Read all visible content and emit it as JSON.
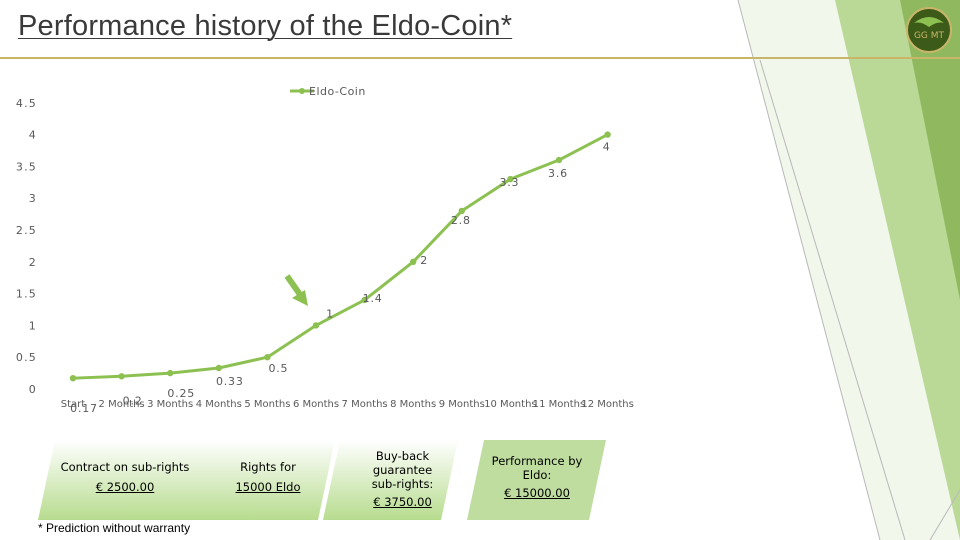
{
  "page": {
    "title": "Performance history of the Eldo-Coin*"
  },
  "colors": {
    "series": "#8cc152",
    "arrow": "#8cc152",
    "rule": "#c9b56a",
    "logo": "#5f8c2a"
  },
  "chart_data": {
    "type": "line",
    "title": "",
    "xlabel": "",
    "ylabel": "",
    "categories": [
      "Start",
      "2 Months",
      "3 Months",
      "4 Months",
      "5 Months",
      "6 Months",
      "7 Months",
      "8 Months",
      "9 Months",
      "10 Months",
      "11 Months",
      "12 Months"
    ],
    "series": [
      {
        "name": "Eldo-Coin",
        "values": [
          0.17,
          0.2,
          0.25,
          0.33,
          0.5,
          1,
          1.4,
          2,
          2.8,
          3.3,
          3.6,
          4
        ]
      }
    ],
    "y_ticks": [
      "0",
      "0.5",
      "1",
      "1.5",
      "2",
      "2.5",
      "3",
      "3.5",
      "4",
      "4.5"
    ],
    "ylim": [
      0,
      4.5
    ],
    "grid": false,
    "legend": "top"
  },
  "boxes": [
    {
      "line1": "Contract on sub-rights",
      "line2": "€ 2500.00"
    },
    {
      "line1": "Rights for",
      "line2": "15000 Eldo"
    },
    {
      "line1": "Buy-back guarantee sub-rights:",
      "line2": "€ 3750.00"
    },
    {
      "line1": "Performance by Eldo:",
      "line2": "€ 15000.00"
    }
  ],
  "footnote": "* Prediction without warranty",
  "logo": {
    "text": "GG MT"
  }
}
